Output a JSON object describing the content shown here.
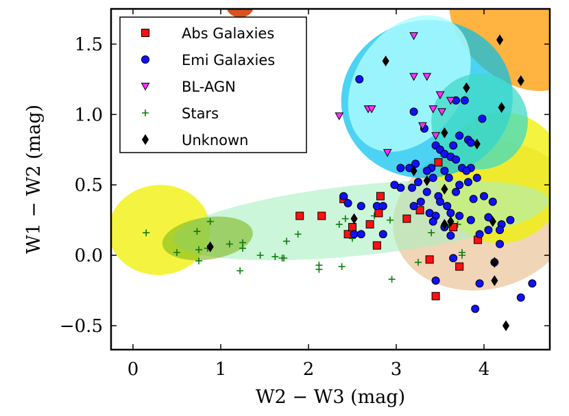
{
  "chart_data": {
    "type": "scatter",
    "xlabel": "W2 − W3 (mag)",
    "ylabel": "W1 − W2 (mag)",
    "xlim": [
      -0.25,
      4.75
    ],
    "ylim": [
      -0.67,
      1.75
    ],
    "xticks": [
      0,
      1,
      2,
      3,
      4
    ],
    "xtick_labels": [
      "0",
      "1",
      "2",
      "3",
      "4"
    ],
    "yticks": [
      -0.5,
      0.0,
      0.5,
      1.0,
      1.5
    ],
    "ytick_labels": [
      "−0.5",
      "0.0",
      "0.5",
      "1.0",
      "1.5"
    ],
    "grid": false,
    "legend_position": "top-left",
    "regions": [
      {
        "color": "#e3b27a",
        "opacity": 0.55,
        "cx": 4.0,
        "cy": 0.28,
        "rx": 1.05,
        "ry": 0.52,
        "rot": 15
      },
      {
        "color": "#ff9a00",
        "opacity": 0.75,
        "cx": 4.35,
        "cy": 1.6,
        "rx": 0.85,
        "ry": 0.35,
        "rot": -40
      },
      {
        "color": "#f0f000",
        "opacity": 0.75,
        "cx": 4.2,
        "cy": 0.55,
        "rx": 0.75,
        "ry": 0.45,
        "rot": 70
      },
      {
        "color": "#f0f000",
        "opacity": 0.75,
        "cx": 0.3,
        "cy": 0.18,
        "rx": 0.58,
        "ry": 0.32,
        "rot": 5
      },
      {
        "color": "#00c0f0",
        "opacity": 0.7,
        "cx": 3.35,
        "cy": 1.11,
        "rx": 0.98,
        "ry": 0.56,
        "rot": 10
      },
      {
        "color": "#aefcff",
        "opacity": 0.8,
        "cx": 3.15,
        "cy": 1.22,
        "rx": 0.85,
        "ry": 0.38,
        "rot": 55
      },
      {
        "color": "#40d9c4",
        "opacity": 0.75,
        "cx": 3.95,
        "cy": 0.95,
        "rx": 0.55,
        "ry": 0.34,
        "rot": 0
      },
      {
        "color": "#aaf0c0",
        "opacity": 0.6,
        "cx": 2.6,
        "cy": 0.25,
        "rx": 2.15,
        "ry": 0.25,
        "rot": 6
      },
      {
        "color": "#7fb81e",
        "opacity": 0.6,
        "cx": 0.85,
        "cy": 0.12,
        "rx": 0.52,
        "ry": 0.15,
        "rot": 8
      },
      {
        "color": "#d9531e",
        "opacity": 1.0,
        "cx": 1.22,
        "cy": 1.76,
        "rx": 0.15,
        "ry": 0.07,
        "rot": 0
      }
    ],
    "series": [
      {
        "name": "Abs Galaxies",
        "marker": "square",
        "color": "#ff1010",
        "points": [
          [
            1.9,
            0.28
          ],
          [
            2.15,
            0.28
          ],
          [
            2.4,
            0.4
          ],
          [
            2.45,
            0.15
          ],
          [
            2.5,
            0.2
          ],
          [
            2.7,
            0.22
          ],
          [
            2.78,
            0.07
          ],
          [
            2.82,
            0.42
          ],
          [
            2.8,
            0.3
          ],
          [
            3.12,
            0.26
          ],
          [
            3.27,
            0.32
          ],
          [
            3.38,
            -0.03
          ],
          [
            3.45,
            -0.29
          ],
          [
            3.65,
            0.2
          ],
          [
            3.72,
            -0.08
          ],
          [
            3.93,
            0.11
          ],
          [
            3.48,
            0.66
          ]
        ]
      },
      {
        "name": "Emi Galaxies",
        "marker": "circle",
        "color": "#1010ff",
        "points": [
          [
            2.58,
            1.25
          ],
          [
            3.2,
            1.02
          ],
          [
            3.32,
            0.9
          ],
          [
            3.68,
            1.1
          ],
          [
            3.78,
            1.1
          ],
          [
            3.98,
            0.97
          ],
          [
            3.45,
            0.78
          ],
          [
            3.5,
            0.75
          ],
          [
            3.72,
            0.85
          ],
          [
            3.82,
            0.82
          ],
          [
            3.85,
            0.8
          ],
          [
            3.65,
            0.78
          ],
          [
            3.55,
            0.72
          ],
          [
            3.62,
            0.7
          ],
          [
            3.68,
            0.68
          ],
          [
            3.75,
            0.62
          ],
          [
            3.85,
            0.62
          ],
          [
            3.4,
            0.62
          ],
          [
            3.22,
            0.65
          ],
          [
            3.15,
            0.62
          ],
          [
            3.05,
            0.62
          ],
          [
            3.35,
            0.6
          ],
          [
            3.55,
            0.6
          ],
          [
            3.6,
            0.55
          ],
          [
            3.8,
            0.6
          ],
          [
            3.92,
            0.55
          ],
          [
            3.42,
            0.55
          ],
          [
            3.25,
            0.52
          ],
          [
            3.18,
            0.48
          ],
          [
            3.05,
            0.48
          ],
          [
            2.98,
            0.5
          ],
          [
            3.35,
            0.45
          ],
          [
            3.48,
            0.42
          ],
          [
            3.68,
            0.45
          ],
          [
            3.88,
            0.4
          ],
          [
            4.0,
            0.42
          ],
          [
            4.1,
            0.38
          ],
          [
            3.5,
            0.38
          ],
          [
            3.58,
            0.35
          ],
          [
            3.28,
            0.38
          ],
          [
            3.2,
            0.35
          ],
          [
            3.38,
            0.3
          ],
          [
            3.45,
            0.28
          ],
          [
            3.62,
            0.3
          ],
          [
            3.72,
            0.28
          ],
          [
            3.85,
            0.25
          ],
          [
            4.05,
            0.27
          ],
          [
            4.2,
            0.22
          ],
          [
            4.05,
            0.18
          ],
          [
            3.95,
            0.15
          ],
          [
            3.42,
            0.24
          ],
          [
            3.55,
            0.2
          ],
          [
            3.62,
            0.14
          ],
          [
            2.4,
            0.42
          ],
          [
            2.45,
            0.37
          ],
          [
            2.6,
            0.35
          ],
          [
            2.52,
            0.15
          ],
          [
            2.6,
            0.15
          ],
          [
            2.85,
            0.15
          ],
          [
            2.78,
            0.35
          ],
          [
            2.85,
            0.35
          ],
          [
            3.65,
            -0.02
          ],
          [
            3.45,
            -0.18
          ],
          [
            3.95,
            -0.2
          ],
          [
            4.12,
            -0.05
          ],
          [
            3.9,
            -0.38
          ],
          [
            4.42,
            -0.3
          ],
          [
            4.55,
            -0.2
          ],
          [
            4.3,
            0.25
          ],
          [
            4.18,
            0.08
          ],
          [
            4.18,
            0.18
          ],
          [
            3.72,
            0.5
          ],
          [
            3.82,
            0.52
          ]
        ]
      },
      {
        "name": "BL-AGN",
        "marker": "triangle",
        "color": "#ff30ff",
        "points": [
          [
            3.2,
            1.56
          ],
          [
            3.2,
            1.27
          ],
          [
            3.35,
            1.27
          ],
          [
            3.5,
            1.14
          ],
          [
            3.42,
            1.04
          ],
          [
            3.52,
            1.02
          ],
          [
            3.62,
            1.1
          ],
          [
            2.68,
            1.04
          ],
          [
            2.72,
            1.04
          ],
          [
            2.35,
            0.99
          ],
          [
            2.9,
            0.73
          ],
          [
            3.45,
            0.85
          ],
          [
            3.3,
            0.92
          ]
        ]
      },
      {
        "name": "Stars",
        "marker": "plus",
        "color": "#0a7a0a",
        "points": [
          [
            0.15,
            0.16
          ],
          [
            0.5,
            0.02
          ],
          [
            0.73,
            0.17
          ],
          [
            0.75,
            0.04
          ],
          [
            0.75,
            -0.04
          ],
          [
            0.85,
            0.05
          ],
          [
            0.88,
            0.24
          ],
          [
            1.1,
            0.08
          ],
          [
            1.22,
            -0.11
          ],
          [
            1.25,
            0.05
          ],
          [
            1.25,
            0.09
          ],
          [
            1.45,
            0.0
          ],
          [
            1.62,
            -0.01
          ],
          [
            1.7,
            -0.02
          ],
          [
            1.72,
            -0.02
          ],
          [
            1.75,
            0.1
          ],
          [
            1.88,
            0.15
          ],
          [
            2.12,
            -0.07
          ],
          [
            2.12,
            -0.1
          ],
          [
            2.35,
            0.22
          ],
          [
            2.38,
            -0.08
          ],
          [
            2.42,
            0.26
          ],
          [
            2.5,
            0.12
          ],
          [
            2.75,
            0.28
          ],
          [
            2.93,
            0.25
          ],
          [
            2.95,
            -0.17
          ],
          [
            3.25,
            -0.05
          ],
          [
            3.4,
            0.16
          ],
          [
            3.6,
            0.22
          ],
          [
            3.7,
            0.22
          ],
          [
            3.75,
            0.0
          ],
          [
            3.75,
            0.02
          ]
        ]
      },
      {
        "name": "Unknown",
        "marker": "diamond",
        "color": "#000000",
        "points": [
          [
            2.88,
            1.38
          ],
          [
            3.55,
            0.87
          ],
          [
            3.8,
            1.19
          ],
          [
            3.92,
            0.79
          ],
          [
            4.18,
            1.53
          ],
          [
            4.2,
            1.05
          ],
          [
            4.42,
            1.24
          ],
          [
            3.35,
            0.53
          ],
          [
            3.55,
            0.47
          ],
          [
            3.55,
            0.22
          ],
          [
            3.62,
            0.24
          ],
          [
            4.1,
            0.24
          ],
          [
            4.12,
            -0.05
          ],
          [
            4.12,
            -0.18
          ],
          [
            4.25,
            -0.5
          ],
          [
            2.52,
            0.26
          ],
          [
            0.88,
            0.06
          ],
          [
            3.2,
            0.6
          ]
        ]
      }
    ]
  }
}
